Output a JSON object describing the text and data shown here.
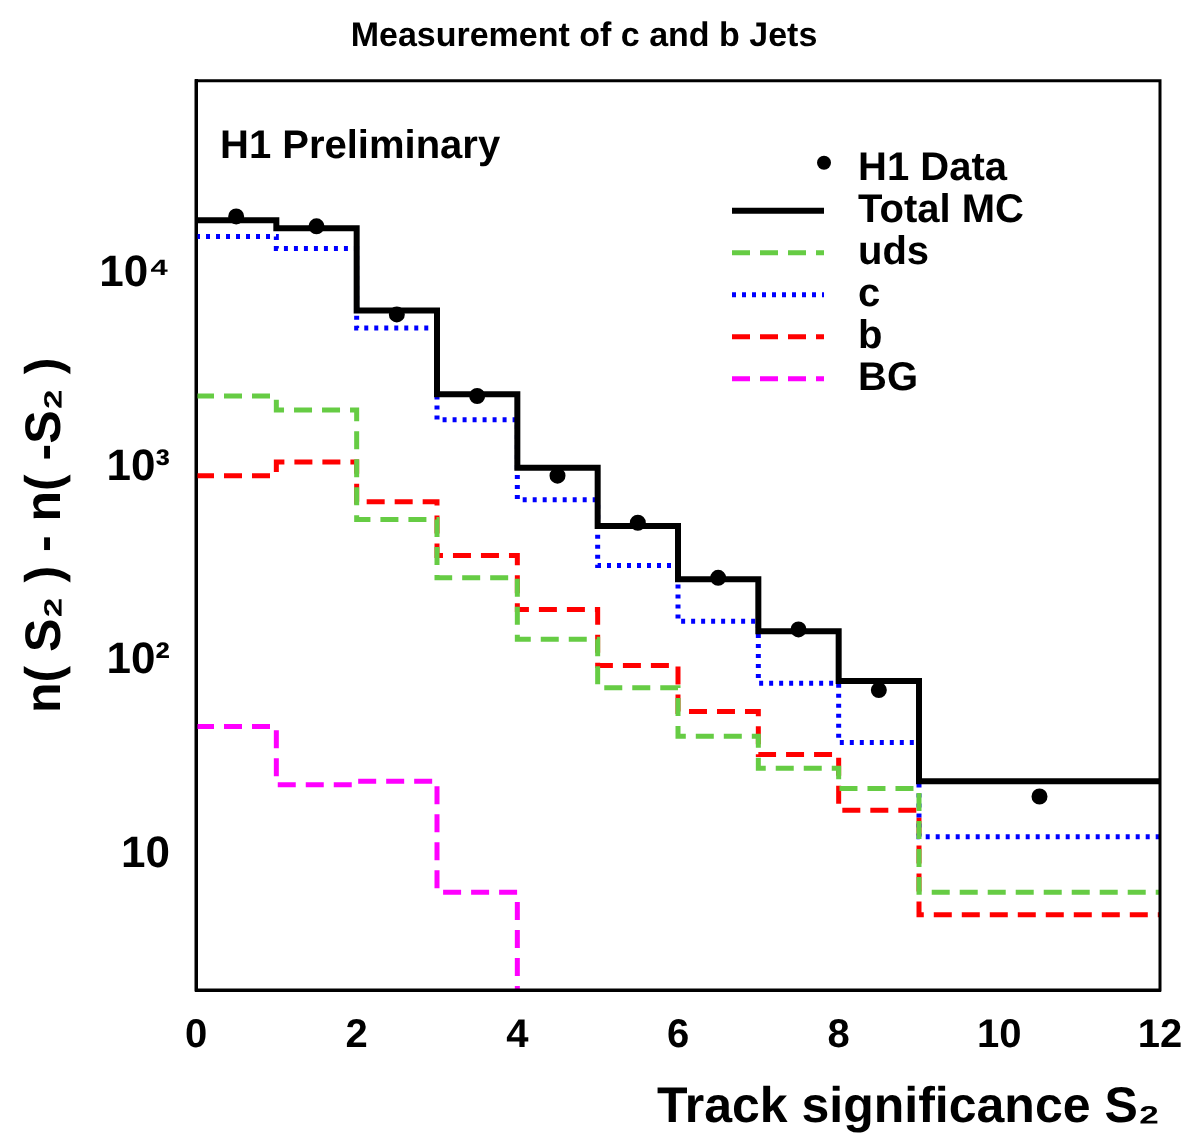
{
  "chart_data": {
    "type": "histogram",
    "title": "Measurement of c and b Jets",
    "xlabel": "Track significance S₂",
    "ylabel": "n( S₂ ) - n( -S₂ )",
    "annotations": [
      "H1 Preliminary"
    ],
    "bins": [
      0,
      1,
      2,
      3,
      4,
      5,
      6,
      7,
      8,
      9,
      12
    ],
    "series": [
      {
        "name": "H1 Data",
        "type": "scatter",
        "marker": "circle",
        "color": "#000000",
        "x": [
          0.5,
          1.5,
          2.5,
          3.5,
          4.5,
          5.5,
          6.5,
          7.5,
          8.5,
          10.5
        ],
        "values": [
          19900,
          17700,
          6200,
          2350,
          910,
          520,
          270,
          146,
          71,
          20
        ]
      },
      {
        "name": "Total MC",
        "color": "#000000",
        "line_style": "solid",
        "values": [
          19000,
          17300,
          6500,
          2400,
          1000,
          500,
          265,
          143,
          79,
          24
        ]
      },
      {
        "name": "uds",
        "color": "#66cc44",
        "line_style": "dashed",
        "values": [
          2350,
          1990,
          540,
          270,
          130,
          73,
          41,
          28,
          22,
          6.4
        ]
      },
      {
        "name": "c",
        "color": "#0000ff",
        "line_style": "dotted",
        "values": [
          15700,
          13600,
          5270,
          1770,
          684,
          313,
          161,
          77,
          38,
          12.4
        ]
      },
      {
        "name": "b",
        "color": "#ff0000",
        "line_style": "dashed",
        "values": [
          910,
          1070,
          667,
          352,
          185,
          95,
          55,
          33,
          17,
          4.9
        ]
      },
      {
        "name": "BG",
        "color": "#ff00ff",
        "line_style": "dashed",
        "bins": [
          0,
          1,
          2,
          3,
          4
        ],
        "values": [
          46,
          23,
          24,
          6.4
        ]
      }
    ],
    "xlim": [
      0,
      12
    ],
    "xticks": [
      0,
      2,
      4,
      6,
      8,
      10,
      12
    ],
    "log": "y",
    "ylim": [
      2,
      100000
    ],
    "yticks": [
      {
        "value": 10,
        "label": "10"
      },
      {
        "value": 100,
        "label": "10²"
      },
      {
        "value": 1000,
        "label": "10³"
      },
      {
        "value": 10000,
        "label": "10⁴"
      }
    ],
    "grid": false,
    "legend": "top right"
  }
}
